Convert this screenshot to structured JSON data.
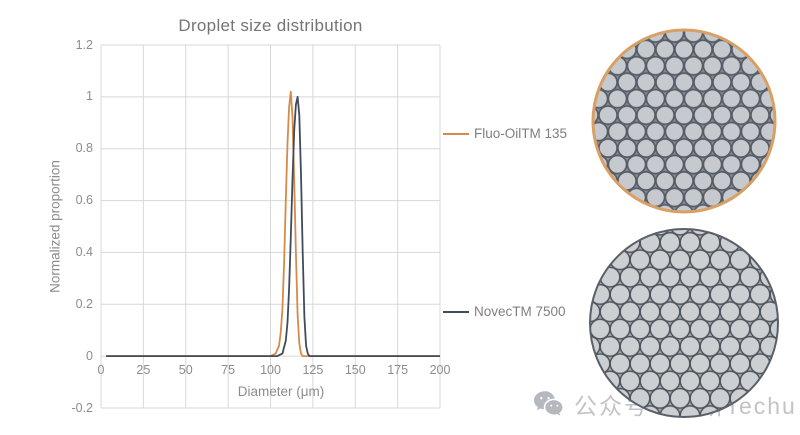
{
  "chart_data": {
    "type": "line",
    "title": "Droplet size distribution",
    "xlabel": "Diameter (μm)",
    "ylabel": "Normalized proportion",
    "xlim": [
      0,
      200
    ],
    "ylim": [
      -0.2,
      1.2
    ],
    "x_ticks": [
      0,
      25,
      50,
      75,
      100,
      125,
      150,
      175,
      200
    ],
    "y_ticks": [
      1.2,
      1,
      0.8,
      0.6,
      0.4,
      0.2,
      0,
      -0.2
    ],
    "grid": true,
    "grid_color": "#d8d8d8",
    "legend_position": "right-of-plot",
    "series": [
      {
        "name": "Fluo-OilTM 135",
        "color": "#D68A4A",
        "peak_x": 112,
        "peak_y": 1.02,
        "x": [
          3,
          60,
          95,
          100,
          103,
          105,
          106,
          107,
          108,
          109,
          110,
          111,
          112,
          113,
          114,
          115,
          116,
          117,
          118,
          119,
          121,
          140,
          200
        ],
        "y": [
          0,
          0,
          0,
          0,
          0.01,
          0.04,
          0.09,
          0.18,
          0.36,
          0.6,
          0.82,
          0.96,
          1.02,
          0.92,
          0.68,
          0.4,
          0.16,
          0.05,
          0.01,
          0,
          0,
          0,
          0
        ]
      },
      {
        "name": "NovecTM 7500",
        "color": "#414B5C",
        "peak_x": 116,
        "peak_y": 1.0,
        "x": [
          3,
          60,
          100,
          104,
          107,
          109,
          110,
          111,
          112,
          113,
          114,
          115,
          116,
          117,
          118,
          119,
          120,
          121,
          122,
          123,
          125,
          140,
          200
        ],
        "y": [
          0,
          0,
          0,
          0,
          0.01,
          0.06,
          0.13,
          0.26,
          0.46,
          0.68,
          0.87,
          0.97,
          1.0,
          0.93,
          0.7,
          0.4,
          0.15,
          0.04,
          0.01,
          0,
          0,
          0,
          0
        ]
      }
    ]
  },
  "micrographs": {
    "top": {
      "border_color": "#D9A066",
      "droplet_fill": "#c6c9cd",
      "droplet_outline": "#565d66",
      "gap_color": "#858b93"
    },
    "bottom": {
      "border_color": "#596069",
      "droplet_fill": "#cdd0d3",
      "droplet_outline": "#4e555d",
      "gap_color": "#a8acb1"
    }
  },
  "watermark": {
    "icon": "wechat-icon",
    "text": "公众号 · 京研Techu",
    "color": "#c3c3c3",
    "icon_color": "#b5b8bc"
  }
}
